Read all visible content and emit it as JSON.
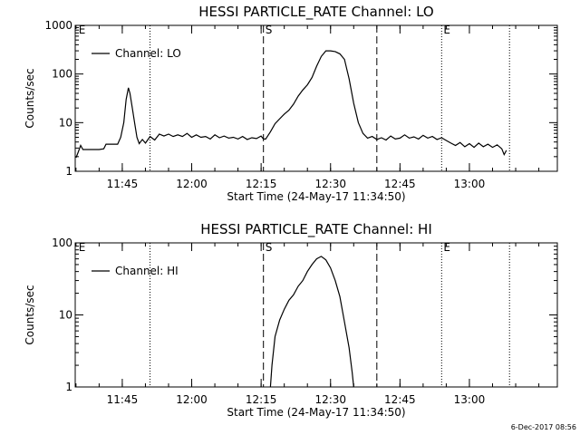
{
  "footer_timestamp": "6-Dec-2017 08:56",
  "chart_data": [
    {
      "type": "line",
      "title": "HESSI PARTICLE_RATE Channel: LO",
      "ylabel": "Counts/sec",
      "xlabel": "Start Time (24-May-17 11:34:50)",
      "yscale": "log",
      "ylim": [
        1,
        1000
      ],
      "y_ticks": [
        1,
        10,
        100,
        1000
      ],
      "y_tick_labels": [
        "1",
        "10",
        "100",
        "1000"
      ],
      "xlim": [
        "11:34:50",
        "13:19:00"
      ],
      "x_ticks": [
        "11:45",
        "12:00",
        "12:15",
        "12:30",
        "12:45",
        "13:00"
      ],
      "x_tick_labels": [
        "11:45",
        "12:00",
        "12:15",
        "12:30",
        "12:45",
        "13:00"
      ],
      "legend": "top-left",
      "grid": false,
      "markers": [
        {
          "time": "11:35:10",
          "style": "none",
          "label": "E"
        },
        {
          "time": "11:51:00",
          "style": "dotted",
          "label": ""
        },
        {
          "time": "12:15:30",
          "style": "dashed",
          "label": "S"
        },
        {
          "time": "12:40:00",
          "style": "dashed",
          "label": ""
        },
        {
          "time": "12:54:00",
          "style": "dotted",
          "label": "E"
        },
        {
          "time": "13:08:40",
          "style": "dotted",
          "label": ""
        }
      ],
      "series": [
        {
          "name": "Channel: LO",
          "points": [
            [
              "11:35:00",
              1.9
            ],
            [
              "11:35:30",
              2.5
            ],
            [
              "11:36:00",
              3.4
            ],
            [
              "11:36:30",
              2.8
            ],
            [
              "11:38:00",
              2.8
            ],
            [
              "11:40:00",
              2.8
            ],
            [
              "11:41:00",
              2.9
            ],
            [
              "11:41:30",
              3.6
            ],
            [
              "11:44:00",
              3.6
            ],
            [
              "11:44:40",
              5
            ],
            [
              "11:45:20",
              10
            ],
            [
              "11:45:50",
              30
            ],
            [
              "11:46:20",
              52
            ],
            [
              "11:46:40",
              40
            ],
            [
              "11:47:10",
              20
            ],
            [
              "11:47:40",
              10
            ],
            [
              "11:48:10",
              5
            ],
            [
              "11:48:40",
              3.7
            ],
            [
              "11:49:20",
              4.5
            ],
            [
              "11:50:00",
              3.8
            ],
            [
              "11:51:00",
              5.2
            ],
            [
              "11:52:00",
              4.4
            ],
            [
              "11:53:00",
              5.8
            ],
            [
              "11:54:00",
              5.3
            ],
            [
              "11:55:00",
              5.8
            ],
            [
              "11:56:00",
              5.2
            ],
            [
              "11:57:00",
              5.6
            ],
            [
              "11:58:00",
              5.2
            ],
            [
              "11:59:00",
              6.0
            ],
            [
              "12:00:00",
              5.0
            ],
            [
              "12:01:00",
              5.6
            ],
            [
              "12:02:00",
              5.0
            ],
            [
              "12:03:00",
              5.2
            ],
            [
              "12:04:00",
              4.6
            ],
            [
              "12:05:00",
              5.6
            ],
            [
              "12:06:00",
              4.9
            ],
            [
              "12:07:00",
              5.3
            ],
            [
              "12:08:00",
              4.8
            ],
            [
              "12:09:00",
              5.0
            ],
            [
              "12:10:00",
              4.6
            ],
            [
              "12:11:00",
              5.2
            ],
            [
              "12:12:00",
              4.5
            ],
            [
              "12:13:00",
              4.9
            ],
            [
              "12:14:00",
              4.7
            ],
            [
              "12:15:00",
              5.3
            ],
            [
              "12:15:30",
              4.6
            ],
            [
              "12:16:00",
              4.6
            ],
            [
              "12:17:00",
              6.5
            ],
            [
              "12:18:00",
              9.5
            ],
            [
              "12:19:00",
              12
            ],
            [
              "12:20:00",
              15
            ],
            [
              "12:21:00",
              18
            ],
            [
              "12:22:00",
              24
            ],
            [
              "12:23:00",
              35
            ],
            [
              "12:24:00",
              47
            ],
            [
              "12:25:00",
              60
            ],
            [
              "12:26:00",
              85
            ],
            [
              "12:27:00",
              145
            ],
            [
              "12:28:00",
              230
            ],
            [
              "12:29:00",
              300
            ],
            [
              "12:30:00",
              300
            ],
            [
              "12:31:00",
              290
            ],
            [
              "12:32:00",
              260
            ],
            [
              "12:33:00",
              200
            ],
            [
              "12:34:00",
              80
            ],
            [
              "12:35:00",
              25
            ],
            [
              "12:36:00",
              10
            ],
            [
              "12:37:00",
              6
            ],
            [
              "12:38:00",
              4.8
            ],
            [
              "12:39:00",
              5.2
            ],
            [
              "12:40:00",
              4.5
            ],
            [
              "12:41:00",
              4.9
            ],
            [
              "12:42:00",
              4.4
            ],
            [
              "12:43:00",
              5.3
            ],
            [
              "12:44:00",
              4.6
            ],
            [
              "12:45:00",
              4.8
            ],
            [
              "12:46:00",
              5.6
            ],
            [
              "12:47:00",
              4.8
            ],
            [
              "12:48:00",
              5.1
            ],
            [
              "12:49:00",
              4.6
            ],
            [
              "12:50:00",
              5.5
            ],
            [
              "12:51:00",
              4.8
            ],
            [
              "12:52:00",
              5.2
            ],
            [
              "12:53:00",
              4.5
            ],
            [
              "12:54:00",
              4.9
            ],
            [
              "12:55:00",
              4.3
            ],
            [
              "12:56:00",
              3.8
            ],
            [
              "12:57:00",
              3.4
            ],
            [
              "12:58:00",
              3.9
            ],
            [
              "12:59:00",
              3.2
            ],
            [
              "13:00:00",
              3.7
            ],
            [
              "13:01:00",
              3.1
            ],
            [
              "13:02:00",
              3.8
            ],
            [
              "13:03:00",
              3.2
            ],
            [
              "13:04:00",
              3.6
            ],
            [
              "13:05:00",
              3.1
            ],
            [
              "13:06:00",
              3.5
            ],
            [
              "13:07:00",
              2.9
            ],
            [
              "13:07:30",
              2.2
            ],
            [
              "13:08:00",
              2.7
            ]
          ]
        }
      ]
    },
    {
      "type": "line",
      "title": "HESSI PARTICLE_RATE Channel: HI",
      "ylabel": "Counts/sec",
      "xlabel": "Start Time (24-May-17 11:34:50)",
      "yscale": "log",
      "ylim": [
        1,
        100
      ],
      "y_ticks": [
        1,
        10,
        100
      ],
      "y_tick_labels": [
        "1",
        "10",
        "100"
      ],
      "xlim": [
        "11:34:50",
        "13:19:00"
      ],
      "x_ticks": [
        "11:45",
        "12:00",
        "12:15",
        "12:30",
        "12:45",
        "13:00"
      ],
      "x_tick_labels": [
        "11:45",
        "12:00",
        "12:15",
        "12:30",
        "12:45",
        "13:00"
      ],
      "legend": "top-left",
      "grid": false,
      "markers": [
        {
          "time": "11:35:10",
          "style": "none",
          "label": "E"
        },
        {
          "time": "11:51:00",
          "style": "dotted",
          "label": ""
        },
        {
          "time": "12:15:30",
          "style": "dashed",
          "label": "S"
        },
        {
          "time": "12:40:00",
          "style": "dashed",
          "label": ""
        },
        {
          "time": "12:54:00",
          "style": "dotted",
          "label": "E"
        },
        {
          "time": "13:08:40",
          "style": "dotted",
          "label": ""
        }
      ],
      "series": [
        {
          "name": "Channel: HI",
          "points": [
            [
              "12:17:00",
              1.0
            ],
            [
              "12:17:20",
              2
            ],
            [
              "12:18:00",
              5
            ],
            [
              "12:19:00",
              8.5
            ],
            [
              "12:20:00",
              12
            ],
            [
              "12:21:00",
              16
            ],
            [
              "12:22:00",
              19
            ],
            [
              "12:23:00",
              25
            ],
            [
              "12:24:00",
              30
            ],
            [
              "12:25:00",
              40
            ],
            [
              "12:26:00",
              50
            ],
            [
              "12:27:00",
              60
            ],
            [
              "12:28:00",
              65
            ],
            [
              "12:29:00",
              58
            ],
            [
              "12:30:00",
              45
            ],
            [
              "12:31:00",
              30
            ],
            [
              "12:32:00",
              18
            ],
            [
              "12:33:00",
              8
            ],
            [
              "12:34:00",
              3.5
            ],
            [
              "12:34:40",
              1.6
            ],
            [
              "12:35:00",
              1.0
            ]
          ]
        }
      ]
    }
  ]
}
